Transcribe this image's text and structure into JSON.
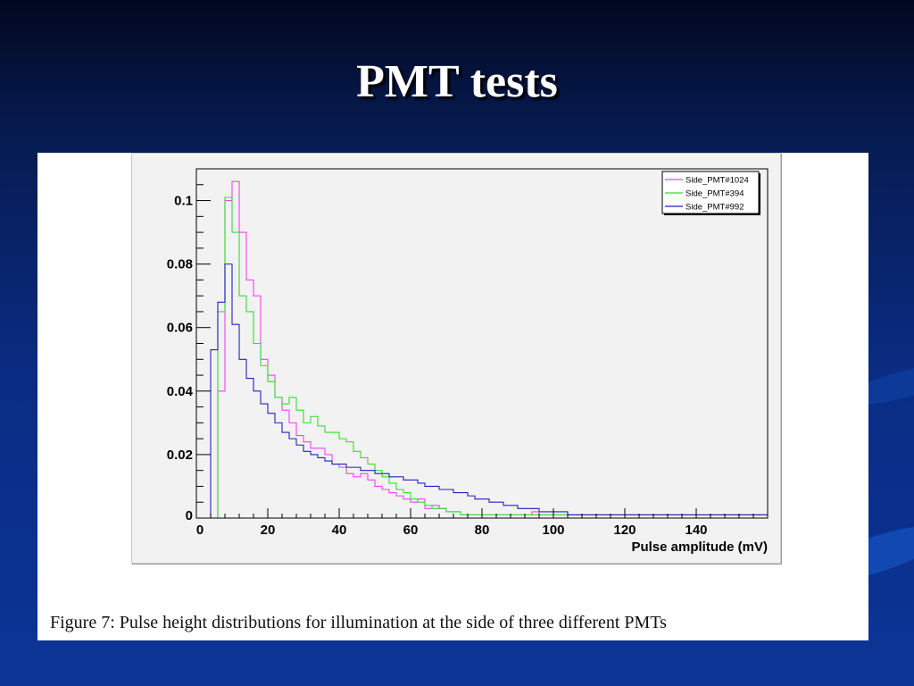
{
  "slide": {
    "title": "PMT tests"
  },
  "figure": {
    "caption": "Figure 7: Pulse height distributions for illumination at the side of three different PMTs"
  },
  "colors": {
    "magenta": "#ee44ee",
    "green": "#33dd33",
    "blue": "#2222bb"
  },
  "chart_data": {
    "type": "line",
    "style": "step-histogram",
    "title": "",
    "xlabel": "Pulse amplitude (mV)",
    "ylabel": "",
    "xlim": [
      0,
      160
    ],
    "ylim": [
      0,
      0.11
    ],
    "xticks": [
      0,
      20,
      40,
      60,
      80,
      100,
      120,
      140
    ],
    "xtick_labels": [
      "0",
      "20",
      "40",
      "60",
      "80",
      "100",
      "120",
      "140"
    ],
    "yticks": [
      0,
      0.02,
      0.04,
      0.06,
      0.08,
      0.1
    ],
    "ytick_labels": [
      "0",
      "0.02",
      "0.04",
      "0.06",
      "0.08",
      "0.1"
    ],
    "grid": false,
    "legend_position": "top-right",
    "bin_width": 2,
    "bin_start": 0,
    "series": [
      {
        "name": "Side_PMT#1024",
        "color": "#ee44ee",
        "values": [
          0,
          0,
          0,
          0.04,
          0.1,
          0.106,
          0.09,
          0.075,
          0.07,
          0.05,
          0.045,
          0.038,
          0.034,
          0.03,
          0.026,
          0.024,
          0.022,
          0.022,
          0.02,
          0.017,
          0.016,
          0.014,
          0.013,
          0.014,
          0.012,
          0.01,
          0.009,
          0.008,
          0.007,
          0.006,
          0.005,
          0.006,
          0.003,
          0.004,
          0.003,
          0.002,
          0.002,
          0.001,
          0.001,
          0.001,
          0.001,
          0.001,
          0.001,
          0.001,
          0.001,
          0.001,
          0.001,
          0.002,
          0.001,
          0.001,
          0.001,
          0.001,
          0.001,
          0.001,
          0.001,
          0.001,
          0.001,
          0.001,
          0.001,
          0.001,
          0.001,
          0.001,
          0.001,
          0.001,
          0.001,
          0.001,
          0.001,
          0.001,
          0.001,
          0.001,
          0.001,
          0.001,
          0.001,
          0.001,
          0.001,
          0.001,
          0.001,
          0.001,
          0.001,
          0.001
        ]
      },
      {
        "name": "Side_PMT#394",
        "color": "#33dd33",
        "values": [
          0,
          0,
          0,
          0.065,
          0.101,
          0.09,
          0.07,
          0.065,
          0.055,
          0.048,
          0.043,
          0.038,
          0.036,
          0.038,
          0.034,
          0.03,
          0.032,
          0.029,
          0.027,
          0.027,
          0.025,
          0.024,
          0.021,
          0.019,
          0.017,
          0.015,
          0.013,
          0.011,
          0.009,
          0.008,
          0.006,
          0.005,
          0.004,
          0.003,
          0.003,
          0.002,
          0.002,
          0.001,
          0.001,
          0.001,
          0.001,
          0.001,
          0.001,
          0.001,
          0.001,
          0.001,
          0.001,
          0.001,
          0.001,
          0.001,
          0.001,
          0.001,
          0.001,
          0.001,
          0.001,
          0.001,
          0.001,
          0.001,
          0.001,
          0.001,
          0.001,
          0.001,
          0.001,
          0.001,
          0.001,
          0.001,
          0.001,
          0.001,
          0.001,
          0.001,
          0.001,
          0.001,
          0.001,
          0.001,
          0.001,
          0.001,
          0.001,
          0.001,
          0.001,
          0.001
        ]
      },
      {
        "name": "Side_PMT#992",
        "color": "#2222bb",
        "values": [
          0,
          0,
          0.053,
          0.068,
          0.08,
          0.061,
          0.05,
          0.044,
          0.04,
          0.036,
          0.033,
          0.03,
          0.027,
          0.025,
          0.023,
          0.021,
          0.02,
          0.019,
          0.018,
          0.017,
          0.017,
          0.016,
          0.016,
          0.015,
          0.015,
          0.014,
          0.014,
          0.013,
          0.013,
          0.012,
          0.012,
          0.011,
          0.01,
          0.01,
          0.009,
          0.009,
          0.008,
          0.008,
          0.007,
          0.006,
          0.006,
          0.005,
          0.005,
          0.004,
          0.004,
          0.003,
          0.003,
          0.003,
          0.002,
          0.002,
          0.002,
          0.002,
          0.001,
          0.001,
          0.001,
          0.001,
          0.001,
          0.001,
          0.001,
          0.001,
          0.001,
          0.001,
          0.001,
          0.001,
          0.001,
          0.001,
          0.001,
          0.001,
          0.001,
          0.001,
          0.001,
          0.001,
          0.001,
          0.001,
          0.001,
          0.001,
          0.001,
          0.001,
          0.001,
          0.001
        ]
      }
    ]
  }
}
